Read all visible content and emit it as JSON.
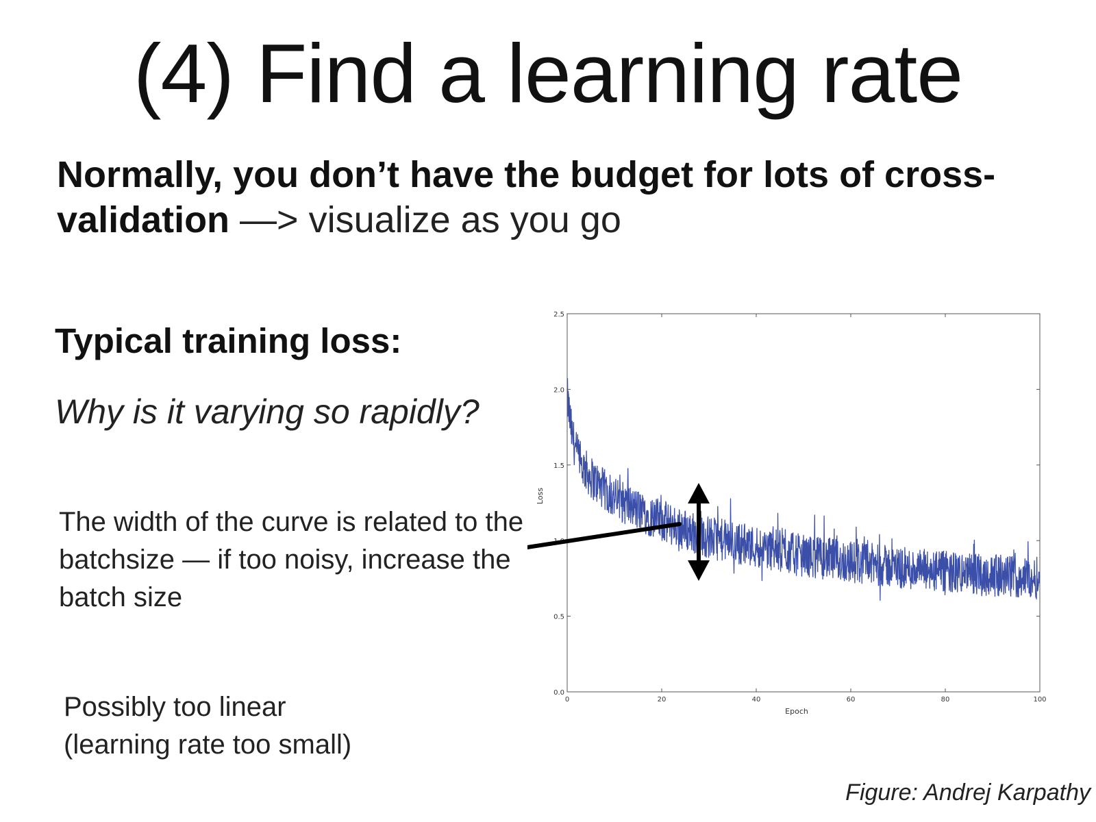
{
  "slide": {
    "title": "(4) Find a learning rate",
    "intro_bold": "Normally, you don’t have the budget for lots of cross-validation",
    "intro_arrow": " —> ",
    "intro_rest": "visualize as you go",
    "subhead": "Typical training loss:",
    "question": "Why is it varying so rapidly?",
    "note_width": "The width of the curve is related to the batchsize — if too noisy, increase the batch size",
    "note_linear_1": "Possibly too linear",
    "note_linear_2": "(learning rate too small)",
    "caption": "Figure: Andrej Karpathy"
  },
  "colors": {
    "series": "#3b4fa8",
    "annotation": "#000000"
  },
  "chart_data": {
    "type": "line",
    "xlabel": "Epoch",
    "ylabel": "Loss",
    "xlim": [
      0,
      100
    ],
    "ylim": [
      0.0,
      2.5
    ],
    "xticks": [
      0,
      20,
      40,
      60,
      80,
      100
    ],
    "yticks": [
      0.0,
      0.5,
      1.0,
      1.5,
      2.0,
      2.5
    ],
    "ytick_labels": [
      "0.0",
      "0.5",
      "1.0",
      "1.5",
      "2.0",
      "2.5"
    ],
    "grid": false,
    "series": [
      {
        "trend_x": [
          0,
          1,
          2,
          3,
          5,
          8,
          10,
          15,
          20,
          25,
          30,
          40,
          50,
          60,
          70,
          80,
          90,
          100
        ],
        "trend_y": [
          1.95,
          1.7,
          1.58,
          1.5,
          1.42,
          1.33,
          1.28,
          1.2,
          1.13,
          1.07,
          1.02,
          0.96,
          0.9,
          0.86,
          0.82,
          0.79,
          0.77,
          0.75
        ],
        "band_halfwidth": 0.14
      }
    ]
  }
}
